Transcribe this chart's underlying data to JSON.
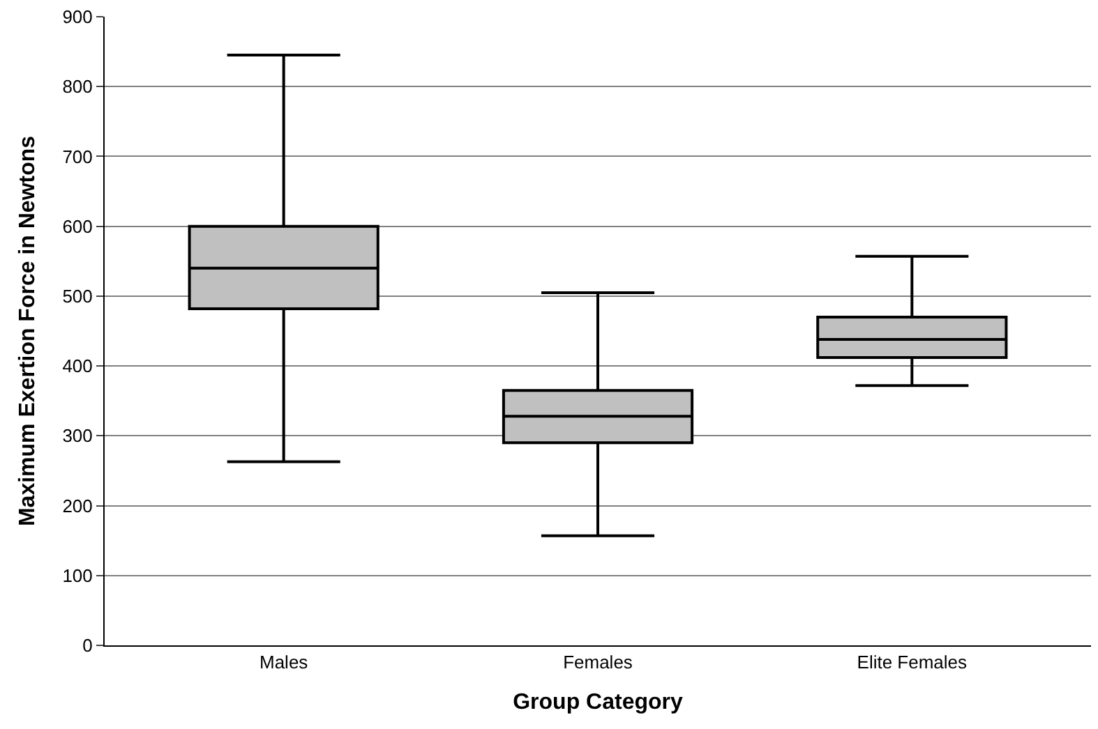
{
  "chart_data": {
    "type": "box",
    "xlabel": "Group Category",
    "ylabel": "Maximum Exertion Force in Newtons",
    "categories": [
      "Males",
      "Females",
      "Elite Females"
    ],
    "boxes": [
      {
        "low": 263,
        "q1": 482,
        "median": 540,
        "q3": 600,
        "high": 845
      },
      {
        "low": 157,
        "q1": 290,
        "median": 328,
        "q3": 365,
        "high": 505
      },
      {
        "low": 372,
        "q1": 412,
        "median": 438,
        "q3": 470,
        "high": 557
      }
    ],
    "color": "#c0c0c0",
    "ylim": [
      0,
      900
    ],
    "yticks": [
      0,
      100,
      200,
      300,
      400,
      500,
      600,
      700,
      800,
      900
    ],
    "grid": "y",
    "legend": false
  }
}
